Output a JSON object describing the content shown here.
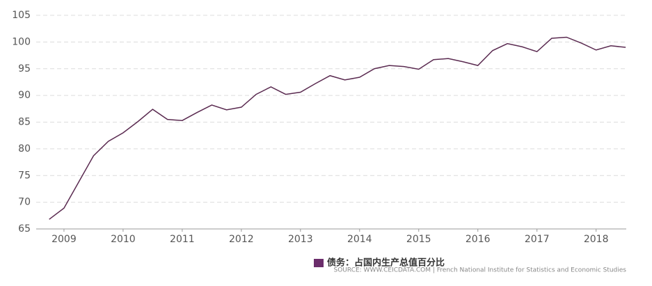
{
  "chart_data": {
    "type": "line",
    "x": [
      2008.75,
      2009.0,
      2009.25,
      2009.5,
      2009.75,
      2010.0,
      2010.25,
      2010.5,
      2010.75,
      2011.0,
      2011.25,
      2011.5,
      2011.75,
      2012.0,
      2012.25,
      2012.5,
      2012.75,
      2013.0,
      2013.25,
      2013.5,
      2013.75,
      2014.0,
      2014.25,
      2014.5,
      2014.75,
      2015.0,
      2015.25,
      2015.5,
      2015.75,
      2016.0,
      2016.25,
      2016.5,
      2016.75,
      2017.0,
      2017.25,
      2017.5,
      2017.75,
      2018.0,
      2018.25,
      2018.5
    ],
    "series": [
      {
        "name": "债务：占国内生产总值百分比",
        "color": "#5a2a50",
        "values": [
          66.8,
          68.9,
          73.8,
          78.7,
          81.4,
          83,
          85.1,
          87.4,
          85.5,
          85.3,
          86.8,
          88.2,
          87.3,
          87.8,
          90.2,
          91.6,
          90.2,
          90.6,
          92.2,
          93.7,
          92.9,
          93.4,
          95,
          95.6,
          95.4,
          94.9,
          96.7,
          96.9,
          96.3,
          95.6,
          98.4,
          99.7,
          99.1,
          98.2,
          100.7,
          100.9,
          99.8,
          98.5,
          99.3,
          99
        ]
      }
    ],
    "legend_color": "#6b2d6b",
    "xlim": [
      2008.53,
      2018.51
    ],
    "xticks": [
      2009,
      2010,
      2011,
      2012,
      2013,
      2014,
      2015,
      2016,
      2017,
      2018
    ],
    "ylim": [
      65,
      105
    ],
    "yticks": [
      65,
      70,
      75,
      80,
      85,
      90,
      95,
      100,
      105
    ],
    "grid": true,
    "source": "SOURCE: WWW.CEICDATA.COM | French National Institute for Statistics and Economic Studies"
  }
}
